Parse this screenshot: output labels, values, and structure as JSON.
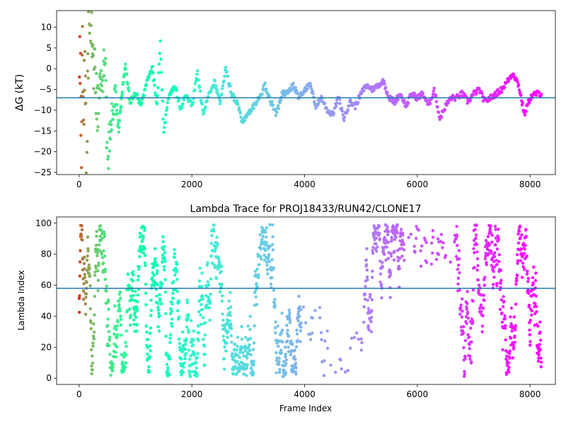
{
  "chart_data": [
    {
      "type": "scatter",
      "title": "",
      "xlabel": "",
      "ylabel": "ΔG (kT)",
      "xlim": [
        -400,
        8450
      ],
      "ylim": [
        -25.5,
        14
      ],
      "xticks": [
        0,
        2000,
        4000,
        6000,
        8000
      ],
      "yticks": [
        10,
        5,
        0,
        -5,
        -10,
        -15,
        -20,
        -25
      ],
      "hline": -7,
      "colormap": "rainbow (red at start, violet at end)",
      "frame_count": 8200,
      "series_key_points": [
        {
          "x": 0,
          "y": 10
        },
        {
          "x": 20,
          "y": 6
        },
        {
          "x": 40,
          "y": -20
        },
        {
          "x": 60,
          "y": 2
        },
        {
          "x": 80,
          "y": -16
        },
        {
          "x": 100,
          "y": 8
        },
        {
          "x": 130,
          "y": -22
        },
        {
          "x": 160,
          "y": 5
        },
        {
          "x": 200,
          "y": 12
        },
        {
          "x": 240,
          "y": 2
        },
        {
          "x": 280,
          "y": -3
        },
        {
          "x": 320,
          "y": -8
        },
        {
          "x": 400,
          "y": -6
        },
        {
          "x": 460,
          "y": 4
        },
        {
          "x": 500,
          "y": -24
        },
        {
          "x": 560,
          "y": -12
        },
        {
          "x": 640,
          "y": -6
        },
        {
          "x": 700,
          "y": -15
        },
        {
          "x": 760,
          "y": -6
        },
        {
          "x": 820,
          "y": 1
        },
        {
          "x": 900,
          "y": -8
        },
        {
          "x": 1000,
          "y": -6
        },
        {
          "x": 1100,
          "y": -9
        },
        {
          "x": 1200,
          "y": -3
        },
        {
          "x": 1300,
          "y": 0
        },
        {
          "x": 1380,
          "y": -9
        },
        {
          "x": 1440,
          "y": 6
        },
        {
          "x": 1500,
          "y": -15
        },
        {
          "x": 1600,
          "y": -6
        },
        {
          "x": 1700,
          "y": -4
        },
        {
          "x": 1800,
          "y": -10
        },
        {
          "x": 1900,
          "y": -6
        },
        {
          "x": 2000,
          "y": -9
        },
        {
          "x": 2100,
          "y": -1
        },
        {
          "x": 2200,
          "y": -11
        },
        {
          "x": 2300,
          "y": -6
        },
        {
          "x": 2400,
          "y": -3
        },
        {
          "x": 2500,
          "y": -8
        },
        {
          "x": 2600,
          "y": 0
        },
        {
          "x": 2700,
          "y": -6
        },
        {
          "x": 2800,
          "y": -8
        },
        {
          "x": 2900,
          "y": -13
        },
        {
          "x": 3000,
          "y": -11
        },
        {
          "x": 3100,
          "y": -9
        },
        {
          "x": 3200,
          "y": -7
        },
        {
          "x": 3300,
          "y": -4
        },
        {
          "x": 3400,
          "y": -8
        },
        {
          "x": 3500,
          "y": -11
        },
        {
          "x": 3600,
          "y": -6
        },
        {
          "x": 3700,
          "y": -6
        },
        {
          "x": 3800,
          "y": -4
        },
        {
          "x": 3900,
          "y": -7
        },
        {
          "x": 4000,
          "y": -5
        },
        {
          "x": 4100,
          "y": -4
        },
        {
          "x": 4200,
          "y": -9
        },
        {
          "x": 4300,
          "y": -7
        },
        {
          "x": 4400,
          "y": -10
        },
        {
          "x": 4500,
          "y": -11
        },
        {
          "x": 4600,
          "y": -7
        },
        {
          "x": 4700,
          "y": -12
        },
        {
          "x": 4800,
          "y": -8
        },
        {
          "x": 4900,
          "y": -9
        },
        {
          "x": 5000,
          "y": -6
        },
        {
          "x": 5100,
          "y": -4
        },
        {
          "x": 5200,
          "y": -5
        },
        {
          "x": 5300,
          "y": -4
        },
        {
          "x": 5400,
          "y": -3
        },
        {
          "x": 5500,
          "y": -7
        },
        {
          "x": 5600,
          "y": -8
        },
        {
          "x": 5700,
          "y": -6
        },
        {
          "x": 5800,
          "y": -9
        },
        {
          "x": 5900,
          "y": -6
        },
        {
          "x": 6000,
          "y": -7
        },
        {
          "x": 6100,
          "y": -6
        },
        {
          "x": 6200,
          "y": -9
        },
        {
          "x": 6300,
          "y": -5
        },
        {
          "x": 6400,
          "y": -12
        },
        {
          "x": 6500,
          "y": -9
        },
        {
          "x": 6600,
          "y": -7
        },
        {
          "x": 6700,
          "y": -7
        },
        {
          "x": 6800,
          "y": -6
        },
        {
          "x": 6900,
          "y": -8
        },
        {
          "x": 7000,
          "y": -6
        },
        {
          "x": 7100,
          "y": -5
        },
        {
          "x": 7200,
          "y": -8
        },
        {
          "x": 7300,
          "y": -7
        },
        {
          "x": 7400,
          "y": -6
        },
        {
          "x": 7500,
          "y": -5
        },
        {
          "x": 7600,
          "y": -3
        },
        {
          "x": 7700,
          "y": -1
        },
        {
          "x": 7800,
          "y": -4
        },
        {
          "x": 7900,
          "y": -11
        },
        {
          "x": 8000,
          "y": -7
        },
        {
          "x": 8100,
          "y": -6
        },
        {
          "x": 8200,
          "y": -6
        }
      ]
    },
    {
      "type": "scatter",
      "title": "Lambda Trace for PROJ18433/RUN42/CLONE17",
      "xlabel": "Frame Index",
      "ylabel": "Lambda Index",
      "xlim": [
        -400,
        8450
      ],
      "ylim": [
        -4,
        104
      ],
      "xticks": [
        0,
        2000,
        4000,
        6000,
        8000
      ],
      "yticks": [
        0,
        20,
        40,
        60,
        80,
        100
      ],
      "hline": 58,
      "colormap": "rainbow (red at start, violet at end)",
      "frame_count": 8200,
      "value_range": [
        1,
        99
      ]
    }
  ]
}
